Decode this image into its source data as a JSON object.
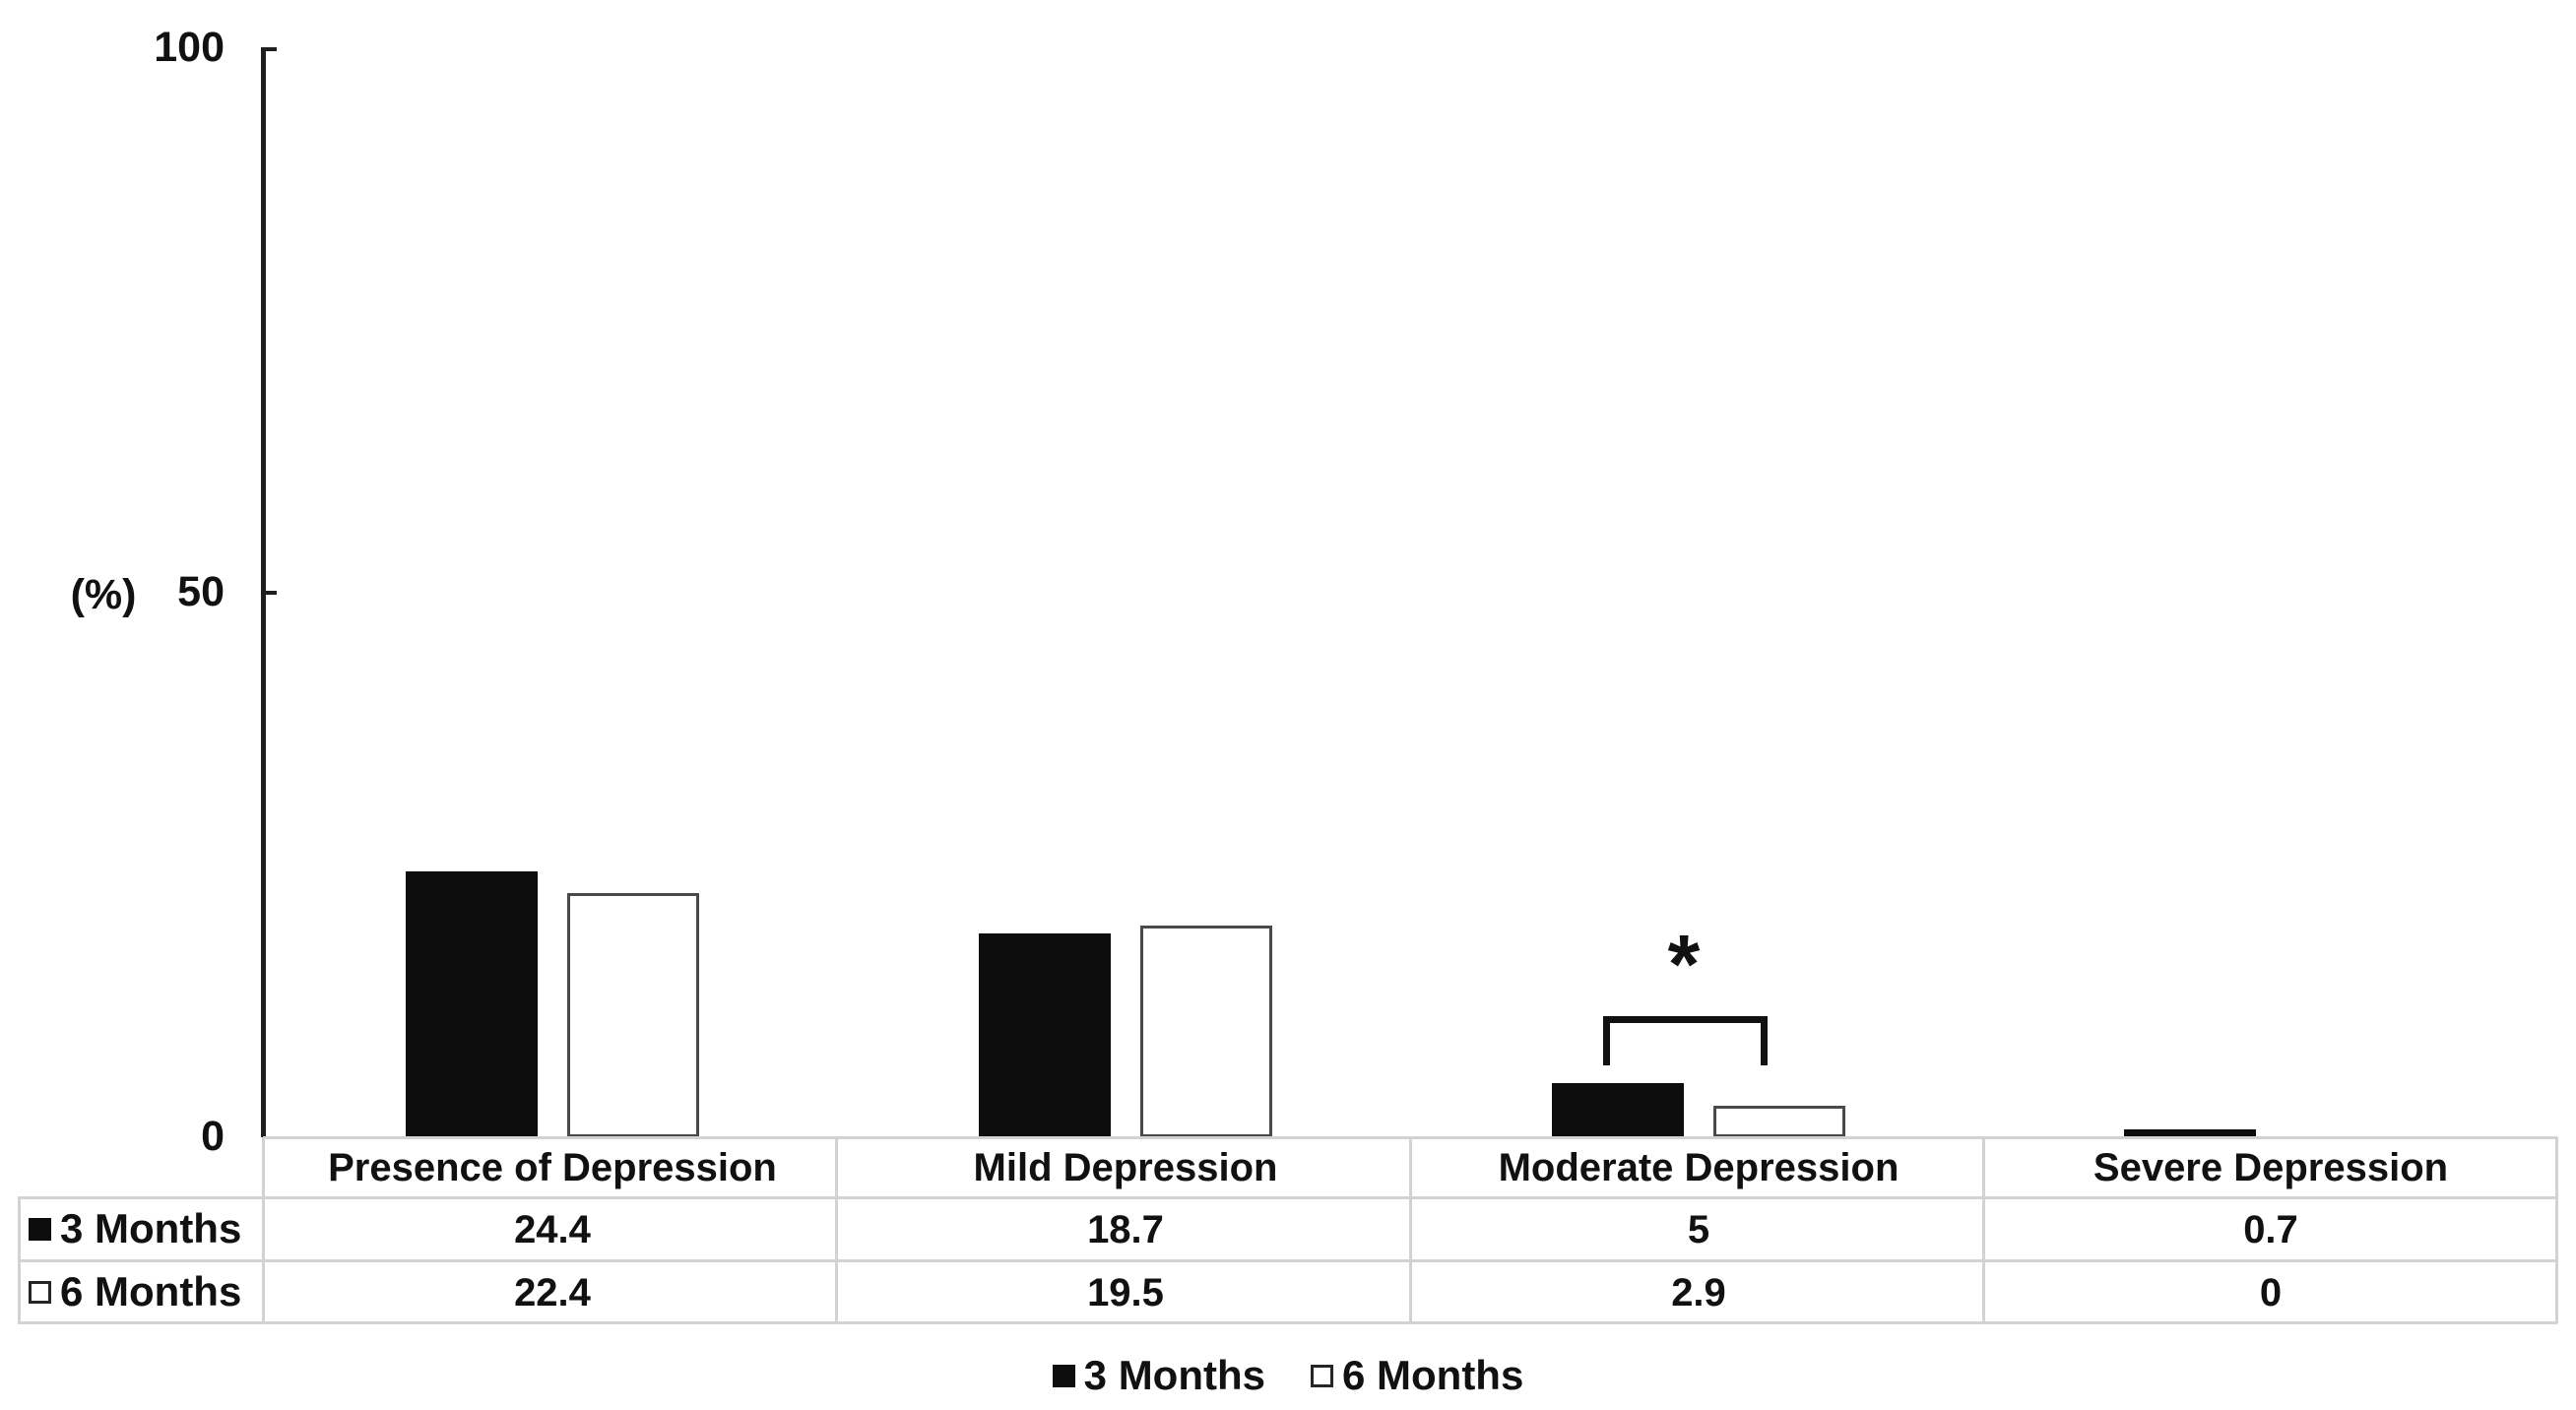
{
  "chart_data": {
    "type": "bar",
    "title": "",
    "xlabel": "",
    "ylabel": "(%)",
    "ylim": [
      0,
      100
    ],
    "yticks": [
      0,
      50,
      100
    ],
    "grid": false,
    "legend_position": "bottom",
    "categories": [
      "Presence of Depression",
      "Mild Depression",
      "Moderate Depression",
      "Severe Depression"
    ],
    "series": [
      {
        "name": "3 Months",
        "fill": "#0d0d0d",
        "values": [
          24.4,
          18.7,
          5,
          0.7
        ]
      },
      {
        "name": "6 Months",
        "fill": "#ffffff",
        "outline": "#4a4a4a",
        "values": [
          22.4,
          19.5,
          2.9,
          0
        ]
      }
    ],
    "annotations": [
      {
        "type": "significance-bracket",
        "category": "Moderate Depression",
        "between": [
          "3 Months",
          "6 Months"
        ],
        "label": "*"
      }
    ],
    "data_table_shown": true
  },
  "colors": {
    "bar_fill_3_months": "#0d0d0d",
    "bar_outline_6_months": "#4a4a4a",
    "axis": "#1f1f1f",
    "table_border": "#d2d2d2",
    "text": "#111111"
  }
}
